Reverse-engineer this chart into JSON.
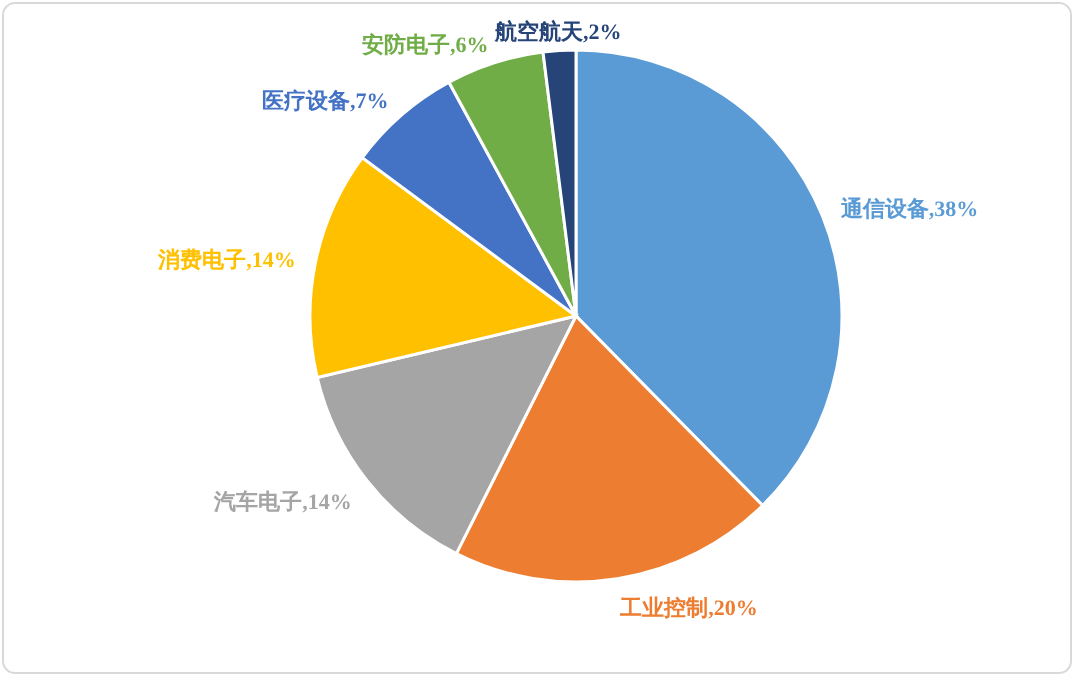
{
  "chart_data": {
    "type": "pie",
    "categories": [
      "通信设备",
      "工业控制",
      "汽车电子",
      "消费电子",
      "医疗设备",
      "安防电子",
      "航空航天"
    ],
    "values": [
      38,
      20,
      14,
      14,
      7,
      6,
      2
    ],
    "value_labels": [
      "38%",
      "20%",
      "14%",
      "14%",
      "7%",
      "6%",
      "2%"
    ],
    "colors": [
      "#5b9bd5",
      "#ed7d31",
      "#a5a5a5",
      "#ffc000",
      "#4472c4",
      "#70ad47",
      "#264478"
    ],
    "legend": false
  }
}
